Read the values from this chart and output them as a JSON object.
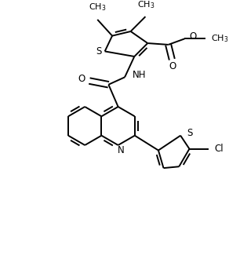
{
  "bg_color": "#ffffff",
  "line_color": "#000000",
  "lw": 1.4,
  "figsize": [
    2.92,
    3.3
  ],
  "dpi": 100,
  "xlim": [
    0,
    2.92
  ],
  "ylim": [
    0,
    3.3
  ]
}
